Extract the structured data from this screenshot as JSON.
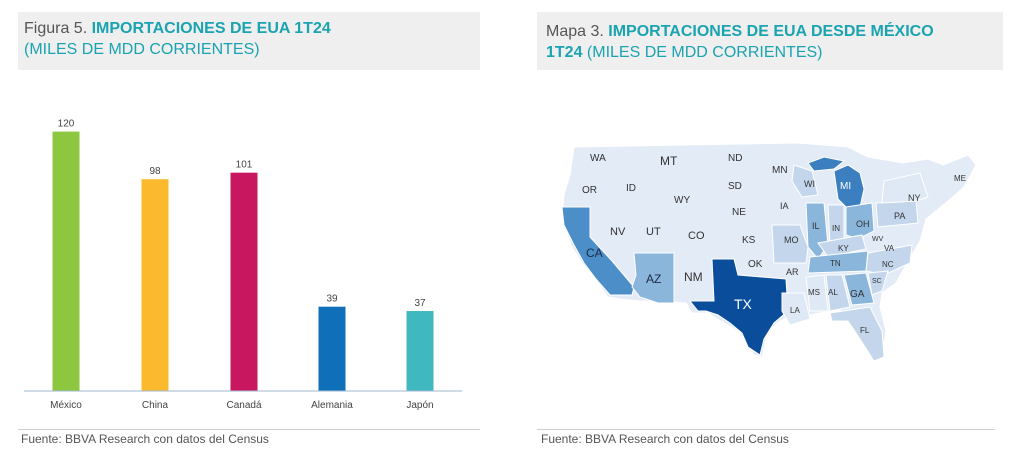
{
  "figure": {
    "prefix": "Figura 5.",
    "title": "IMPORTACIONES DE EUA 1T24",
    "subtitle": "(MILES DE MDD CORRIENTES)",
    "source": "Fuente: BBVA Research con datos del Census"
  },
  "map": {
    "prefix": "Mapa 3.",
    "title_line1": "IMPORTACIONES DE EUA DESDE MÉXICO",
    "title_line2": "1T24",
    "subtitle": "(MILES DE MDD CORRIENTES)",
    "source": "Fuente: BBVA Research con datos del Census",
    "base_color": "#e3ebf7",
    "states": [
      "WA",
      "MT",
      "ND",
      "MN",
      "OR",
      "ID",
      "SD",
      "WI",
      "MI",
      "ME",
      "NY",
      "WY",
      "NE",
      "IA",
      "IL",
      "IN",
      "OH",
      "PA",
      "NV",
      "UT",
      "CO",
      "KS",
      "MO",
      "KY",
      "WV",
      "VA",
      "CA",
      "OK",
      "TN",
      "NC",
      "AR",
      "SC",
      "AZ",
      "NM",
      "MS",
      "AL",
      "GA",
      "TX",
      "LA",
      "FL"
    ]
  },
  "chart_data": {
    "type": "bar",
    "categories": [
      "México",
      "China",
      "Canadá",
      "Alemania",
      "Japón"
    ],
    "values": [
      120,
      98,
      101,
      39,
      37
    ],
    "value_labels": [
      "120",
      "98",
      "101",
      "39",
      "37"
    ],
    "colors": [
      "#8dc63f",
      "#fbb92d",
      "#c8175e",
      "#0f6fb8",
      "#3fb8bf"
    ],
    "ylim": [
      0,
      130
    ],
    "grid": false
  }
}
